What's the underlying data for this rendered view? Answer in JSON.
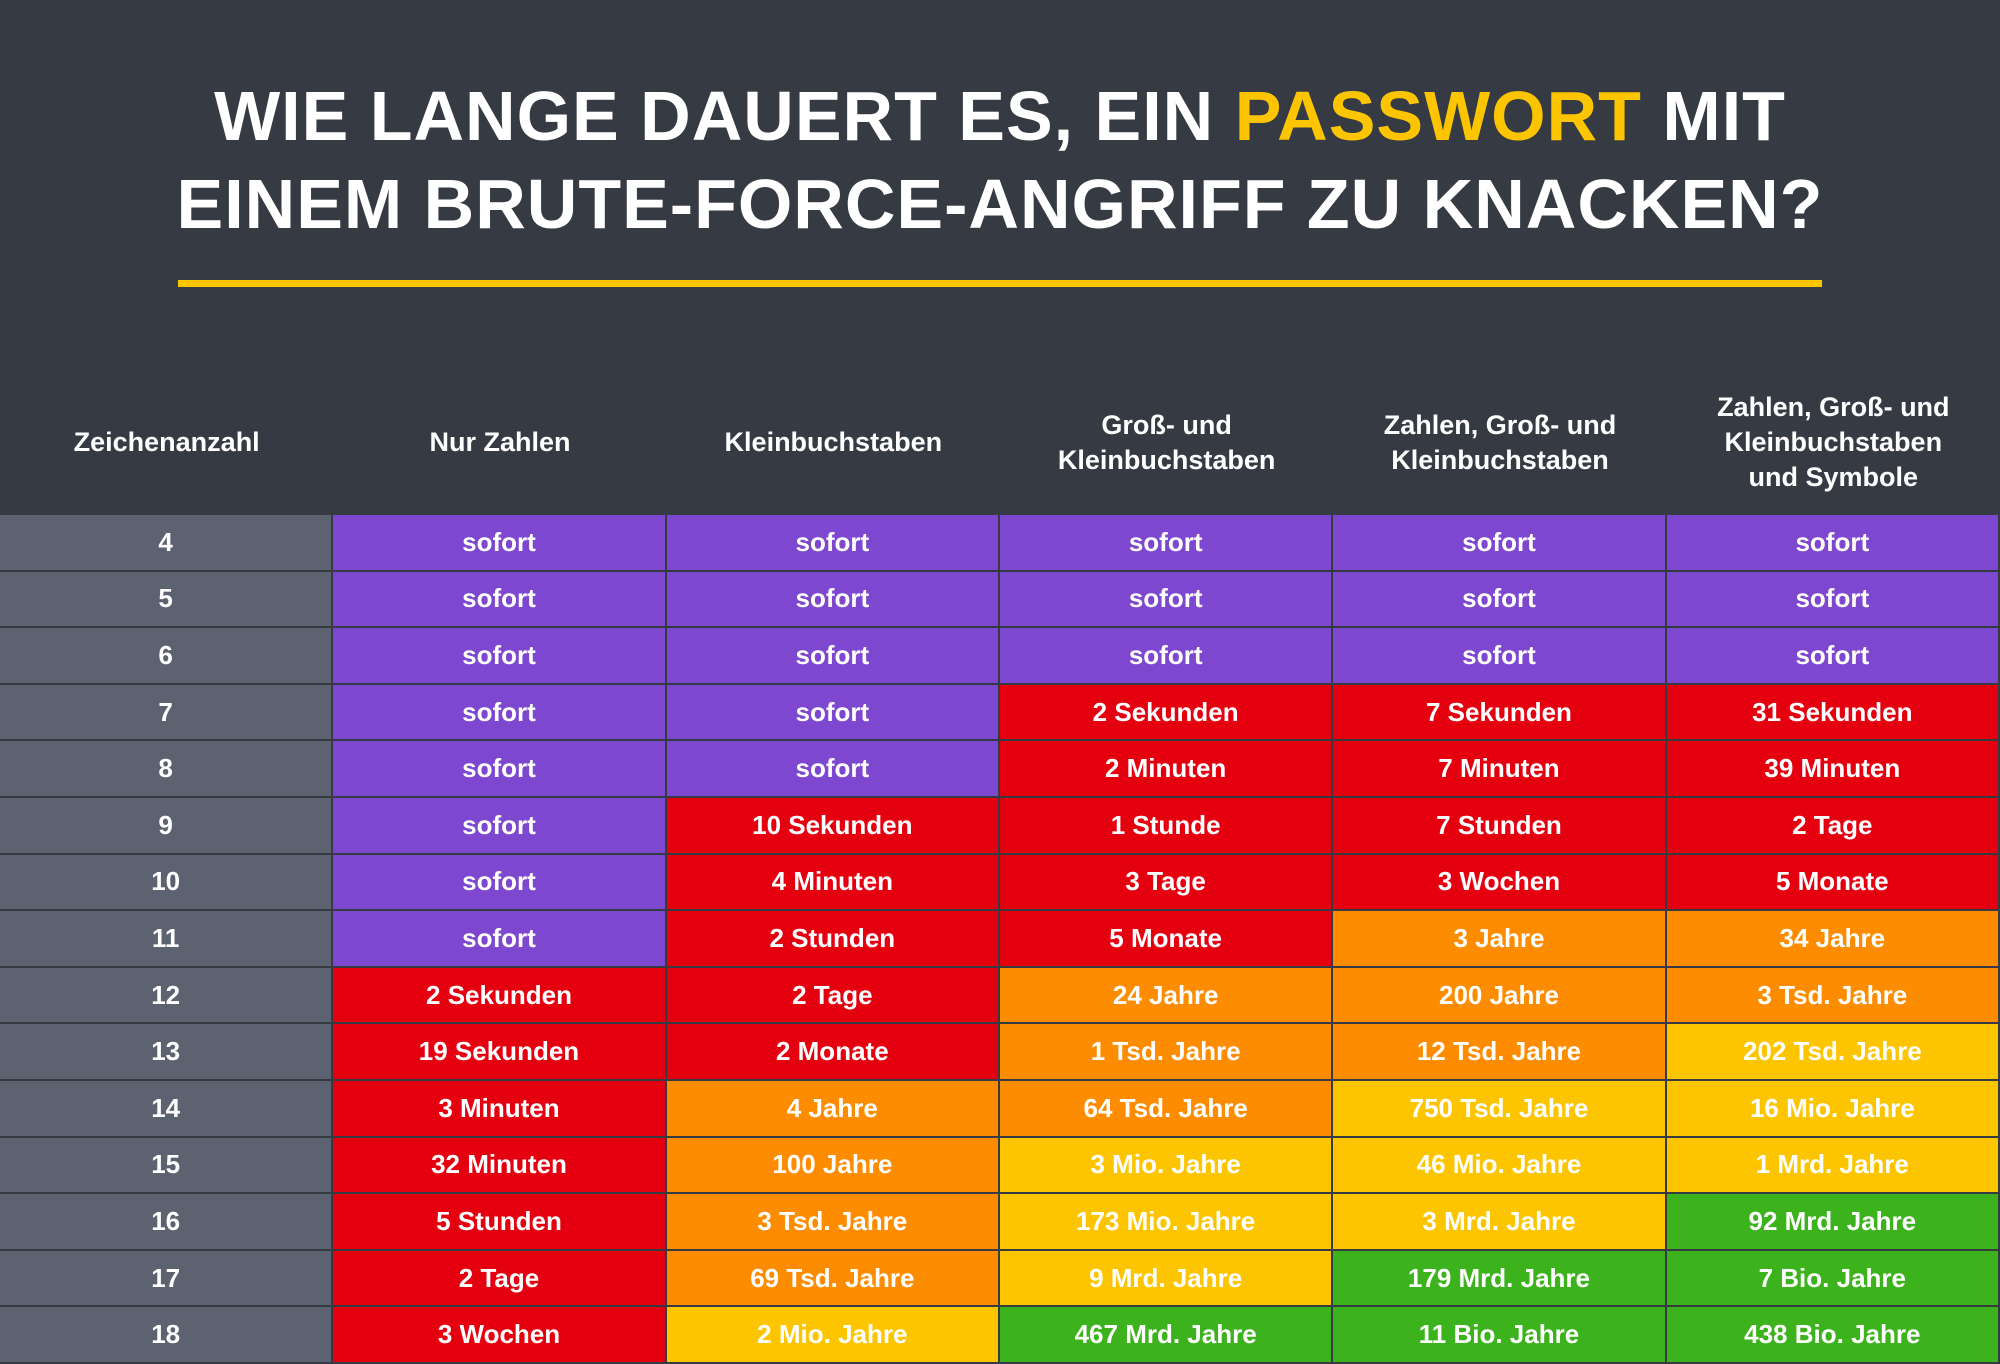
{
  "header": {
    "title_line1_pre": "WIE LANGE DAUERT ES, EIN ",
    "title_highlight": "PASSWORT",
    "title_line1_post": " MIT",
    "title_line2": "EINEM BRUTE-FORCE-ANGRIFF ZU KNACKEN?"
  },
  "colors": {
    "background": "#363b43",
    "accent": "#fdc500",
    "count_column": "#5c6270",
    "sofort": "#7e47cf",
    "red": "#e5000f",
    "orange": "#fd8c00",
    "yellow": "#fdc500",
    "green": "#3cb31c"
  },
  "chart_data": {
    "type": "table",
    "columns": [
      "Zeichenanzahl",
      "Nur Zahlen",
      "Kleinbuchstaben",
      "Groß- und\nKleinbuchstaben",
      "Zahlen, Groß- und\nKleinbuchstaben",
      "Zahlen, Groß- und\nKleinbuchstaben\nund Symbole"
    ],
    "rows": [
      {
        "length": "4",
        "values": [
          "sofort",
          "sofort",
          "sofort",
          "sofort",
          "sofort"
        ],
        "levels": [
          "purple",
          "purple",
          "purple",
          "purple",
          "purple"
        ]
      },
      {
        "length": "5",
        "values": [
          "sofort",
          "sofort",
          "sofort",
          "sofort",
          "sofort"
        ],
        "levels": [
          "purple",
          "purple",
          "purple",
          "purple",
          "purple"
        ]
      },
      {
        "length": "6",
        "values": [
          "sofort",
          "sofort",
          "sofort",
          "sofort",
          "sofort"
        ],
        "levels": [
          "purple",
          "purple",
          "purple",
          "purple",
          "purple"
        ]
      },
      {
        "length": "7",
        "values": [
          "sofort",
          "sofort",
          "2 Sekunden",
          "7 Sekunden",
          "31 Sekunden"
        ],
        "levels": [
          "purple",
          "purple",
          "red",
          "red",
          "red"
        ]
      },
      {
        "length": "8",
        "values": [
          "sofort",
          "sofort",
          "2 Minuten",
          "7 Minuten",
          "39 Minuten"
        ],
        "levels": [
          "purple",
          "purple",
          "red",
          "red",
          "red"
        ]
      },
      {
        "length": "9",
        "values": [
          "sofort",
          "10 Sekunden",
          "1 Stunde",
          "7 Stunden",
          "2 Tage"
        ],
        "levels": [
          "purple",
          "red",
          "red",
          "red",
          "red"
        ]
      },
      {
        "length": "10",
        "values": [
          "sofort",
          "4 Minuten",
          "3 Tage",
          "3 Wochen",
          "5 Monate"
        ],
        "levels": [
          "purple",
          "red",
          "red",
          "red",
          "red"
        ]
      },
      {
        "length": "11",
        "values": [
          "sofort",
          "2 Stunden",
          "5 Monate",
          "3 Jahre",
          "34 Jahre"
        ],
        "levels": [
          "purple",
          "red",
          "red",
          "orange",
          "orange"
        ]
      },
      {
        "length": "12",
        "values": [
          "2 Sekunden",
          "2 Tage",
          "24 Jahre",
          "200 Jahre",
          "3 Tsd. Jahre"
        ],
        "levels": [
          "red",
          "red",
          "orange",
          "orange",
          "orange"
        ]
      },
      {
        "length": "13",
        "values": [
          "19 Sekunden",
          "2 Monate",
          "1 Tsd. Jahre",
          "12 Tsd. Jahre",
          "202 Tsd. Jahre"
        ],
        "levels": [
          "red",
          "red",
          "orange",
          "orange",
          "yellow"
        ]
      },
      {
        "length": "14",
        "values": [
          "3 Minuten",
          "4 Jahre",
          "64 Tsd. Jahre",
          "750 Tsd. Jahre",
          "16 Mio. Jahre"
        ],
        "levels": [
          "red",
          "orange",
          "orange",
          "yellow",
          "yellow"
        ]
      },
      {
        "length": "15",
        "values": [
          "32 Minuten",
          "100 Jahre",
          "3 Mio. Jahre",
          "46 Mio. Jahre",
          "1 Mrd. Jahre"
        ],
        "levels": [
          "red",
          "orange",
          "yellow",
          "yellow",
          "yellow"
        ]
      },
      {
        "length": "16",
        "values": [
          "5 Stunden",
          "3 Tsd. Jahre",
          "173 Mio. Jahre",
          "3 Mrd. Jahre",
          "92 Mrd. Jahre"
        ],
        "levels": [
          "red",
          "orange",
          "yellow",
          "yellow",
          "green"
        ]
      },
      {
        "length": "17",
        "values": [
          "2 Tage",
          "69 Tsd. Jahre",
          "9 Mrd. Jahre",
          "179 Mrd. Jahre",
          "7 Bio. Jahre"
        ],
        "levels": [
          "red",
          "orange",
          "yellow",
          "green",
          "green"
        ]
      },
      {
        "length": "18",
        "values": [
          "3 Wochen",
          "2 Mio. Jahre",
          "467 Mrd. Jahre",
          "11 Bio. Jahre",
          "438 Bio. Jahre"
        ],
        "levels": [
          "red",
          "yellow",
          "green",
          "green",
          "green"
        ]
      }
    ]
  }
}
